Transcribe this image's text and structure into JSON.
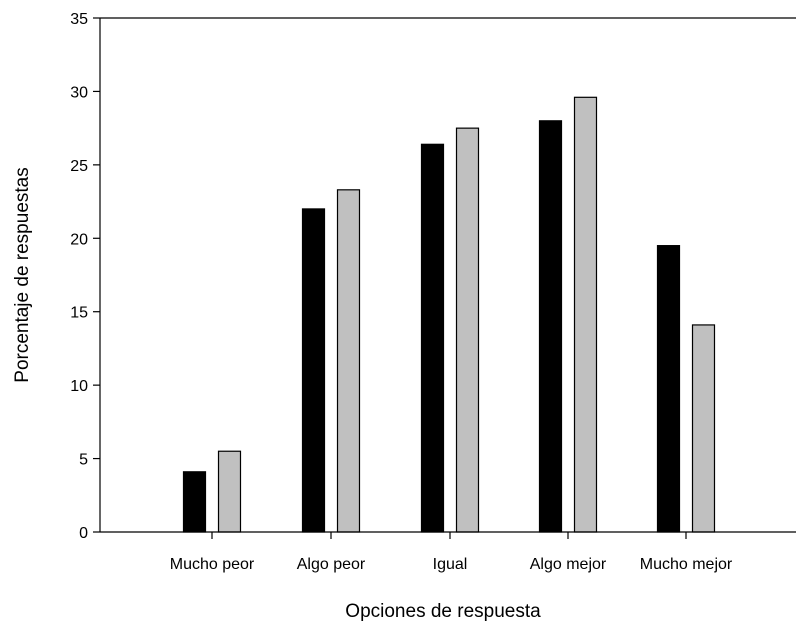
{
  "chart_data": {
    "type": "bar",
    "title": "",
    "xlabel": "Opciones de respuesta",
    "ylabel": "Porcentaje de respuestas",
    "categories": [
      "Mucho peor",
      "Algo peor",
      "Igual",
      "Algo mejor",
      "Mucho mejor"
    ],
    "series": [
      {
        "values": [
          4.1,
          22.0,
          26.4,
          28.0,
          19.5
        ],
        "color": "#000000"
      },
      {
        "values": [
          5.5,
          23.3,
          27.5,
          29.6,
          14.1
        ],
        "color": "#c0c0c0"
      }
    ],
    "ylim": [
      0,
      35
    ],
    "yticks": [
      0,
      5,
      10,
      15,
      20,
      25,
      30,
      35
    ],
    "grid": false,
    "legend": "none"
  }
}
